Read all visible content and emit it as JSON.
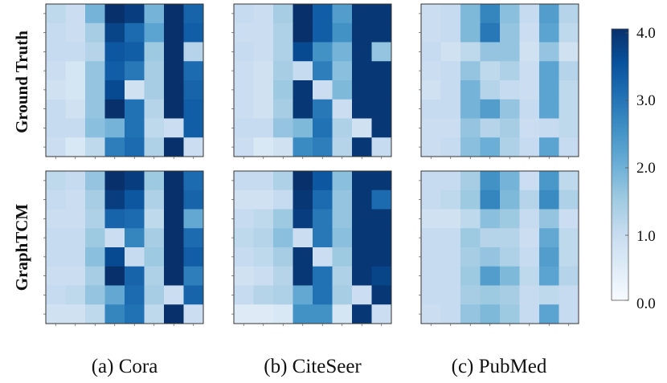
{
  "chart_data": {
    "type": "heatmap",
    "rows": [
      "Ground Truth",
      "GraphTCM"
    ],
    "columns": [
      "(a) Cora",
      "(b) CiteSeer",
      "(c) PubMed"
    ],
    "colorbar": {
      "min": 0.0,
      "max": 4.0,
      "ticks": [
        "0.0",
        "1.0",
        "2.0",
        "3.0",
        "4.0"
      ]
    },
    "matrices": [
      [
        [
          [
            1.1,
            0.9,
            1.9,
            4.0,
            3.8,
            1.9,
            4.0,
            3.2
          ],
          [
            1.0,
            0.9,
            1.4,
            3.7,
            3.1,
            2.2,
            4.0,
            3.3
          ],
          [
            1.0,
            1.0,
            1.2,
            3.4,
            3.3,
            1.5,
            4.0,
            1.2
          ],
          [
            0.9,
            0.7,
            1.6,
            3.3,
            2.9,
            1.4,
            4.0,
            3.1
          ],
          [
            0.8,
            0.7,
            1.6,
            3.6,
            0.8,
            1.4,
            4.0,
            3.2
          ],
          [
            1.0,
            0.8,
            1.6,
            4.0,
            3.0,
            1.2,
            4.0,
            3.3
          ],
          [
            1.0,
            1.0,
            1.7,
            1.9,
            3.0,
            1.1,
            0.9,
            3.3
          ],
          [
            0.9,
            0.6,
            1.1,
            2.8,
            3.1,
            1.3,
            4.0,
            0.9
          ]
        ],
        [
          [
            1.0,
            0.9,
            1.4,
            4.0,
            3.3,
            2.3,
            3.9,
            3.9
          ],
          [
            0.9,
            0.9,
            1.3,
            4.0,
            3.3,
            2.5,
            3.9,
            3.9
          ],
          [
            1.0,
            0.9,
            1.3,
            3.6,
            2.5,
            1.9,
            3.9,
            1.6
          ],
          [
            0.9,
            0.8,
            1.4,
            1.0,
            2.8,
            1.7,
            3.9,
            3.9
          ],
          [
            0.9,
            0.8,
            1.5,
            3.9,
            0.9,
            1.8,
            3.9,
            3.9
          ],
          [
            0.9,
            0.8,
            1.4,
            3.9,
            2.9,
            0.9,
            3.9,
            3.9
          ],
          [
            1.0,
            1.0,
            1.6,
            1.8,
            3.0,
            1.3,
            0.8,
            3.9
          ],
          [
            0.9,
            0.6,
            0.8,
            2.6,
            2.8,
            1.2,
            3.9,
            1.0
          ]
        ],
        [
          [
            0.9,
            1.0,
            1.8,
            2.7,
            1.7,
            1.0,
            2.3,
            1.2
          ],
          [
            0.9,
            1.0,
            1.8,
            2.9,
            1.6,
            0.9,
            2.2,
            1.1
          ],
          [
            1.0,
            0.8,
            1.1,
            1.6,
            1.6,
            0.8,
            1.6,
            0.8
          ],
          [
            0.9,
            1.0,
            1.6,
            1.1,
            1.3,
            0.9,
            2.2,
            1.2
          ],
          [
            0.8,
            1.0,
            1.9,
            1.2,
            1.0,
            0.9,
            2.2,
            1.1
          ],
          [
            1.0,
            1.0,
            1.9,
            2.3,
            1.6,
            1.0,
            2.2,
            1.1
          ],
          [
            0.9,
            0.9,
            1.6,
            1.2,
            1.4,
            0.9,
            1.0,
            1.1
          ],
          [
            0.9,
            1.0,
            1.7,
            2.0,
            1.3,
            1.0,
            2.2,
            1.0
          ]
        ]
      ],
      [
        [
          [
            1.1,
            1.0,
            1.6,
            4.0,
            3.8,
            1.5,
            4.0,
            3.1
          ],
          [
            1.0,
            0.9,
            1.4,
            3.8,
            3.4,
            1.3,
            4.0,
            3.2
          ],
          [
            0.9,
            0.9,
            1.3,
            3.2,
            3.1,
            1.1,
            4.0,
            2.1
          ],
          [
            1.0,
            1.0,
            1.5,
            0.9,
            2.7,
            1.4,
            4.0,
            3.1
          ],
          [
            1.0,
            1.0,
            1.7,
            3.6,
            1.0,
            1.5,
            4.0,
            3.3
          ],
          [
            0.9,
            0.9,
            1.4,
            4.0,
            3.2,
            1.3,
            4.0,
            2.8
          ],
          [
            1.0,
            1.1,
            1.6,
            2.1,
            3.1,
            1.4,
            0.9,
            3.2
          ],
          [
            0.8,
            0.8,
            1.1,
            2.7,
            3.0,
            1.1,
            4.0,
            0.9
          ]
        ],
        [
          [
            1.0,
            1.0,
            1.3,
            4.0,
            3.4,
            1.7,
            3.9,
            3.9
          ],
          [
            0.8,
            0.8,
            1.0,
            3.9,
            3.1,
            1.6,
            3.9,
            3.1
          ],
          [
            1.0,
            1.1,
            1.5,
            3.8,
            2.9,
            1.6,
            3.9,
            3.9
          ],
          [
            1.1,
            1.2,
            1.7,
            0.9,
            2.9,
            1.7,
            3.9,
            3.9
          ],
          [
            1.0,
            1.1,
            1.4,
            3.9,
            0.9,
            1.5,
            3.9,
            3.9
          ],
          [
            0.8,
            0.9,
            1.2,
            3.9,
            3.0,
            1.3,
            3.9,
            3.7
          ],
          [
            1.0,
            1.2,
            1.3,
            2.1,
            3.0,
            1.4,
            0.9,
            3.9
          ],
          [
            0.5,
            0.5,
            0.6,
            2.5,
            2.5,
            0.7,
            3.9,
            0.9
          ]
        ],
        [
          [
            1.0,
            1.0,
            1.4,
            2.5,
            1.9,
            0.9,
            2.4,
            1.1
          ],
          [
            1.0,
            1.1,
            1.5,
            2.7,
            1.8,
            1.2,
            2.6,
            1.3
          ],
          [
            0.8,
            0.8,
            1.1,
            1.7,
            1.5,
            1.0,
            1.6,
            0.9
          ],
          [
            1.0,
            1.0,
            1.5,
            1.2,
            1.2,
            0.9,
            2.1,
            1.1
          ],
          [
            1.0,
            1.0,
            1.4,
            1.6,
            1.3,
            1.0,
            2.3,
            1.1
          ],
          [
            1.0,
            1.0,
            1.5,
            2.3,
            1.8,
            1.1,
            2.2,
            1.2
          ],
          [
            1.0,
            1.0,
            1.4,
            1.5,
            1.4,
            1.0,
            1.1,
            1.0
          ],
          [
            0.9,
            1.0,
            1.6,
            1.8,
            1.5,
            1.0,
            2.2,
            1.0
          ]
        ]
      ]
    ],
    "colormap": [
      "#f7fbff",
      "#deebf7",
      "#c6dbef",
      "#9ecae1",
      "#6baed6",
      "#4292c6",
      "#2171b5",
      "#08519c",
      "#08306b"
    ],
    "grid": false,
    "legend": "colorbar-right"
  }
}
